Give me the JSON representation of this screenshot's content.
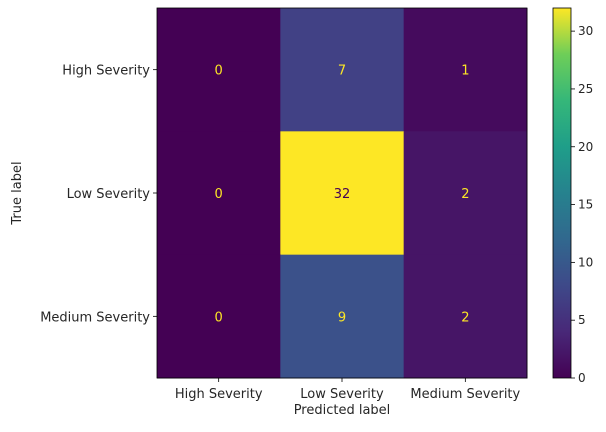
{
  "chart_data": {
    "type": "heatmap",
    "title": "",
    "xlabel": "Predicted label",
    "ylabel": "True label",
    "x_categories": [
      "High Severity",
      "Low Severity",
      "Medium Severity"
    ],
    "y_categories": [
      "High Severity",
      "Low Severity",
      "Medium Severity"
    ],
    "matrix": [
      [
        0,
        7,
        1
      ],
      [
        0,
        32,
        2
      ],
      [
        0,
        9,
        2
      ]
    ],
    "colormap": "viridis",
    "color_range": [
      0,
      32
    ],
    "colorbar_ticks": [
      0,
      5,
      10,
      15,
      20,
      25,
      30
    ],
    "grid": false,
    "text_color_low": "#fde725",
    "text_color_high": "#440154"
  }
}
